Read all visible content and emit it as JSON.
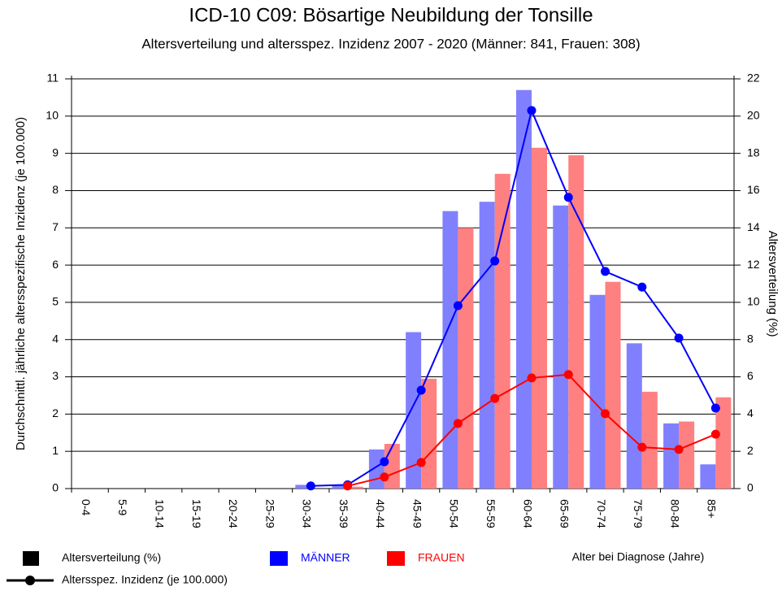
{
  "chart_data": {
    "type": "bar_line",
    "title": "ICD-10 C09: Bösartige Neubildung der Tonsille",
    "subtitle": "Altersverteilung und altersspez. Inzidenz 2007 - 2020 (Männer: 841, Frauen: 308)",
    "y_label": "Durchschnittl. jährliche altersspezifische Inzidenz (je 100.000)",
    "y2_label": "Altersverteilung (%)",
    "x_label": "Alter bei Diagnose (Jahre)",
    "legend": {
      "bar": "Altersverteilung (%)",
      "line": "Altersspez. Inzidenz (je 100.000)"
    },
    "categories": [
      "0-4",
      "5-9",
      "10-14",
      "15-19",
      "20-24",
      "25-29",
      "30-34",
      "35-39",
      "40-44",
      "45-49",
      "50-54",
      "55-59",
      "60-64",
      "65-69",
      "70-74",
      "75-79",
      "80-84",
      "85+"
    ],
    "series": [
      {
        "name": "MÄNNER",
        "color": "#0000ff",
        "bar_color": "#8080ff",
        "values": [
          null,
          null,
          null,
          null,
          null,
          null,
          0.07,
          0.1,
          0.72,
          2.64,
          4.91,
          6.11,
          10.15,
          7.82,
          5.83,
          5.41,
          4.04,
          2.16
        ],
        "distribution": [
          0,
          0,
          0,
          0,
          0,
          0,
          0.2,
          0.2,
          2.1,
          8.4,
          14.9,
          15.4,
          21.4,
          15.2,
          10.4,
          7.8,
          3.5,
          1.3
        ]
      },
      {
        "name": "FRAUEN",
        "color": "#ff0000",
        "bar_color": "#ff8080",
        "values": [
          null,
          null,
          null,
          null,
          null,
          null,
          null,
          0.07,
          0.31,
          0.7,
          1.75,
          2.42,
          2.97,
          3.06,
          2.01,
          1.11,
          1.05,
          1.46
        ],
        "distribution": [
          0,
          0,
          0,
          0,
          0,
          0,
          0,
          0.1,
          2.4,
          5.9,
          14.0,
          16.9,
          18.3,
          17.9,
          11.1,
          5.2,
          3.6,
          4.9
        ]
      }
    ],
    "ylim": [
      0,
      11
    ],
    "yticks": [
      0,
      1,
      2,
      3,
      4,
      5,
      6,
      7,
      8,
      9,
      10,
      11
    ],
    "y2lim": [
      0,
      22
    ],
    "y2ticks": [
      0,
      2,
      4,
      6,
      8,
      10,
      12,
      14,
      16,
      18,
      20,
      22
    ],
    "grid": true
  }
}
